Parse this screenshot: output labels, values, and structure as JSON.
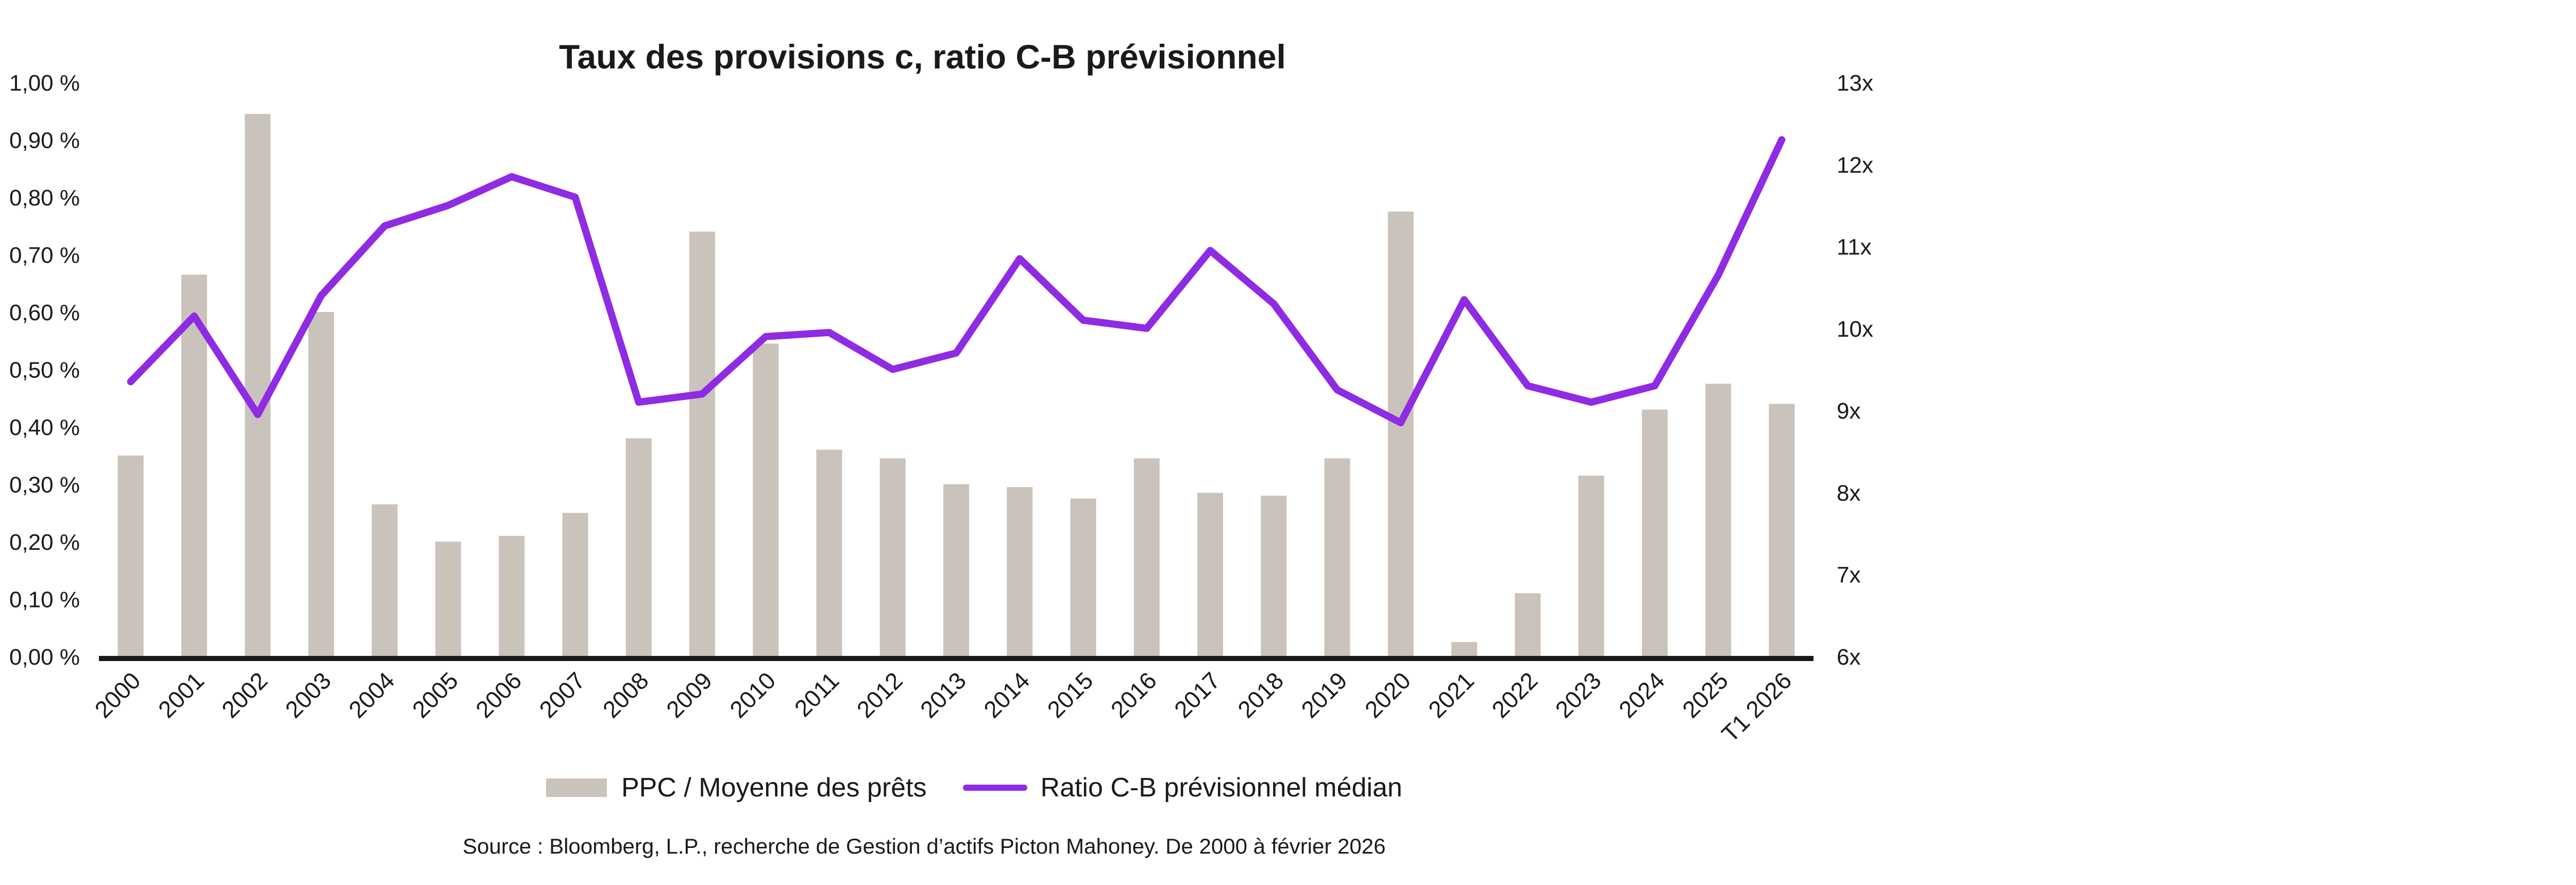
{
  "chart_data": {
    "type": "bar",
    "title": "Taux des provisions c, ratio C-B prévisionnel",
    "categories": [
      "2000",
      "2001",
      "2002",
      "2003",
      "2004",
      "2005",
      "2006",
      "2007",
      "2008",
      "2009",
      "2010",
      "2011",
      "2012",
      "2013",
      "2014",
      "2015",
      "2016",
      "2017",
      "2018",
      "2019",
      "2020",
      "2021",
      "2022",
      "2023",
      "2024",
      "2025",
      "T1 2026"
    ],
    "series": [
      {
        "name": "PPC / Moyenne des prêts",
        "type": "bar",
        "axis": "left",
        "color": "#c9c3bb",
        "values": [
          0.35,
          0.665,
          0.945,
          0.6,
          0.265,
          0.2,
          0.21,
          0.25,
          0.38,
          0.74,
          0.545,
          0.36,
          0.345,
          0.3,
          0.295,
          0.275,
          0.345,
          0.285,
          0.28,
          0.345,
          0.775,
          0.025,
          0.11,
          0.315,
          0.43,
          0.475,
          0.44
        ]
      },
      {
        "name": "Ratio C-B prévisionnel médian",
        "type": "line",
        "axis": "right",
        "color": "#8f2be3",
        "values": [
          9.35,
          10.15,
          8.95,
          10.4,
          11.25,
          11.5,
          11.85,
          11.6,
          9.1,
          9.2,
          9.9,
          9.95,
          9.5,
          9.7,
          10.85,
          10.1,
          10.0,
          10.95,
          10.3,
          9.25,
          8.85,
          10.35,
          9.3,
          9.1,
          9.3,
          10.65,
          12.3
        ]
      }
    ],
    "y_left": {
      "ylim": [
        0,
        1.0
      ],
      "ticks": [
        0,
        0.1,
        0.2,
        0.3,
        0.4,
        0.5,
        0.6,
        0.7,
        0.8,
        0.9,
        1.0
      ],
      "tick_labels": [
        "0,00 %",
        "0,10 %",
        "0,20 %",
        "0,30 %",
        "0,40 %",
        "0,50 %",
        "0,60 %",
        "0,70 %",
        "0,80 %",
        "0,90 %",
        "1,00 %"
      ]
    },
    "y_right": {
      "ylim": [
        6,
        13
      ],
      "ticks": [
        6,
        7,
        8,
        9,
        10,
        11,
        12,
        13
      ],
      "tick_labels": [
        "6x",
        "7x",
        "8x",
        "9x",
        "10x",
        "11x",
        "12x",
        "13x"
      ]
    },
    "grid": false,
    "legend_position": "bottom",
    "source": "Source : Bloomberg, L.P., recherche de Gestion d’actifs Picton Mahoney. De 2000 à février 2026",
    "colors": {
      "axis": "#1a1a1a",
      "text": "#1a1a1a"
    }
  }
}
